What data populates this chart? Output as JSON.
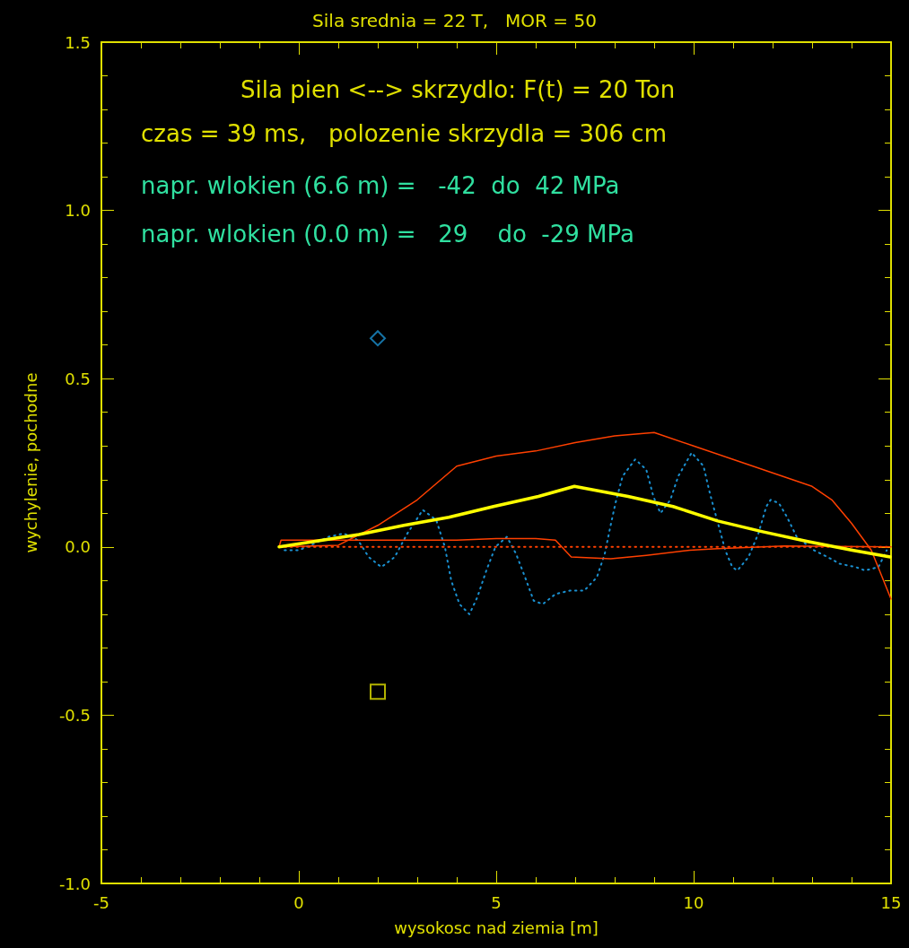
{
  "chart_data": {
    "type": "line",
    "title": "Sila srednia = 22 T,   MOR = 50",
    "xlabel": "wysokosc nad ziemia [m]",
    "ylabel": "wychylenie, pochodne",
    "annotations": [
      "Sila pien <--> skrzydlo: F(t) = 20 Ton",
      "czas = 39 ms,   polozenie skrzydla = 306 cm",
      "napr. wlokien (6.6 m) =   -42  do  42 MPa",
      "napr. wlokien (0.0 m) =   29    do  -29 MPa"
    ],
    "xlim": [
      -5,
      15
    ],
    "xticks": [
      -5,
      0,
      5,
      10,
      15
    ],
    "ylim": [
      -1.0,
      1.5
    ],
    "yticks": [
      {
        "value": -1.0,
        "label": "-1.0"
      },
      {
        "value": -0.5,
        "label": "-0.5"
      },
      {
        "value": 0.0,
        "label": "0.0"
      },
      {
        "value": 0.5,
        "label": "0.5"
      },
      {
        "value": 1.0,
        "label": "1.0"
      },
      {
        "value": 1.5,
        "label": "1.5"
      }
    ],
    "grid": false,
    "marker": "none",
    "series": [
      {
        "color": "#ffff00",
        "line_style": "solid",
        "x": [
          -0.5,
          1.52,
          2.66,
          3.8,
          4.93,
          6.07,
          6.98,
          8.34,
          9.48,
          10.61,
          11.75,
          12.89,
          14.02,
          14.98
        ],
        "values": [
          0.0,
          0.037,
          0.064,
          0.088,
          0.12,
          0.15,
          0.18,
          0.15,
          0.12,
          0.077,
          0.045,
          0.016,
          -0.01,
          -0.03
        ]
      },
      {
        "color": "#ff4000",
        "line_style": "solid",
        "x": [
          -0.5,
          1,
          2,
          3,
          4,
          5,
          6,
          7,
          8,
          9,
          10,
          11,
          12,
          13,
          13.5,
          14,
          14.5,
          15
        ],
        "values": [
          0.0,
          0.005,
          0.064,
          0.14,
          0.24,
          0.27,
          0.285,
          0.31,
          0.33,
          0.34,
          0.3,
          0.26,
          0.22,
          0.18,
          0.14,
          0.07,
          -0.01,
          -0.155
        ]
      },
      {
        "color": "#ff4000",
        "line_style": "solid",
        "x": [
          -0.5,
          -0.45,
          1,
          2,
          3,
          4,
          5,
          6,
          6.5,
          6.9,
          7.9,
          8.8,
          9.9,
          10.6,
          11.75,
          12.3,
          15
        ],
        "values": [
          0.0,
          0.02,
          0.02,
          0.02,
          0.02,
          0.02,
          0.025,
          0.025,
          0.02,
          -0.03,
          -0.035,
          -0.025,
          -0.01,
          -0.005,
          0.0,
          0.003,
          0.0
        ]
      },
      {
        "color": "#ff4000",
        "line_style": "dotted",
        "x": [
          -0.5,
          15
        ],
        "values": [
          0.0,
          0.0
        ]
      },
      {
        "color": "#1a90d0",
        "line_style": "dotted",
        "x": [
          -0.36,
          0.0,
          0.39,
          0.75,
          1.14,
          1.5,
          1.77,
          2.09,
          2.43,
          2.75,
          3.14,
          3.48,
          3.7,
          3.86,
          4.07,
          4.32,
          4.52,
          4.75,
          4.98,
          5.27,
          5.5,
          5.73,
          5.95,
          6.18,
          6.5,
          6.86,
          7.23,
          7.55,
          7.75,
          7.89,
          8.02,
          8.2,
          8.52,
          8.8,
          8.98,
          9.16,
          9.41,
          9.61,
          9.95,
          10.25,
          10.41,
          10.64,
          10.8,
          10.98,
          11.11,
          11.39,
          11.64,
          11.84,
          11.95,
          12.16,
          12.36,
          12.61,
          13.05,
          13.39,
          13.7,
          14.11,
          14.34,
          14.68,
          14.89
        ],
        "values": [
          -0.01,
          -0.01,
          0.01,
          0.03,
          0.04,
          0.02,
          -0.03,
          -0.06,
          -0.03,
          0.04,
          0.11,
          0.08,
          0.0,
          -0.1,
          -0.17,
          -0.2,
          -0.15,
          -0.07,
          0.0,
          0.03,
          -0.02,
          -0.09,
          -0.16,
          -0.17,
          -0.14,
          -0.13,
          -0.13,
          -0.09,
          -0.02,
          0.06,
          0.13,
          0.21,
          0.26,
          0.23,
          0.15,
          0.1,
          0.14,
          0.21,
          0.28,
          0.24,
          0.16,
          0.06,
          -0.01,
          -0.06,
          -0.07,
          -0.03,
          0.04,
          0.12,
          0.14,
          0.13,
          0.09,
          0.03,
          -0.01,
          -0.03,
          -0.05,
          -0.06,
          -0.07,
          -0.06,
          -0.01
        ]
      },
      {
        "type": "scatter",
        "color": "#1a90d0",
        "marker": "diamond",
        "x": [
          2.0
        ],
        "values": [
          0.62
        ]
      },
      {
        "type": "scatter",
        "color": "#e0e000",
        "marker": "square",
        "x": [
          2.0
        ],
        "values": [
          -0.43
        ]
      }
    ]
  }
}
